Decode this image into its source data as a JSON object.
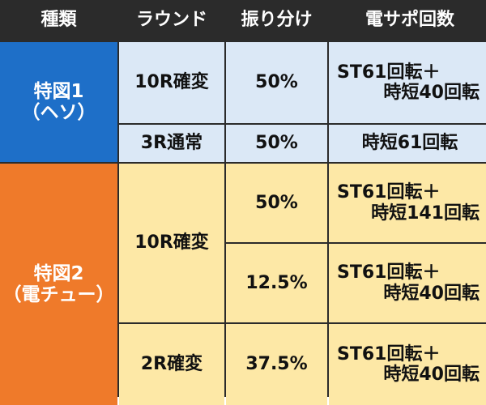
{
  "header": {
    "col1": "種類",
    "col2": "ラウンド",
    "col3": "振り分け",
    "col4": "電サポ回数"
  },
  "group1": {
    "label_line1": "特図1",
    "label_line2": "（ヘソ）",
    "rows": [
      {
        "round": "10R確変",
        "ratio": "50%",
        "support_line1": "ST61回転＋",
        "support_line2": "時短40回転"
      },
      {
        "round": "3R通常",
        "ratio": "50%",
        "support": "時短61回転"
      }
    ]
  },
  "group2": {
    "label_line1": "特図2",
    "label_line2": "（電チュー）",
    "round_merged": "10R確変",
    "rows": [
      {
        "ratio": "50%",
        "support_line1": "ST61回転＋",
        "support_line2": "時短141回転"
      },
      {
        "ratio": "12.5%",
        "support_line1": "ST61回転＋",
        "support_line2": "時短40回転"
      },
      {
        "round": "2R確変",
        "ratio": "37.5%",
        "support_line1": "ST61回転＋",
        "support_line2": "時短40回転"
      }
    ]
  },
  "colors": {
    "header_bg": "#2b2b2b",
    "blue_group": "#1e6fc8",
    "orange_group": "#ef7a2a",
    "blue_cell": "#dbe8f6",
    "yellow_cell": "#fde8a6"
  }
}
